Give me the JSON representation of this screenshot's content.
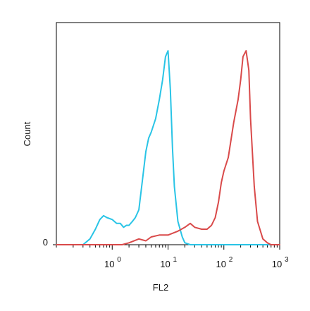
{
  "chart_data": {
    "type": "line",
    "xlabel": "FL2",
    "ylabel": "Count",
    "x_scale": "log",
    "xlim": [
      0.1,
      1000
    ],
    "ylim": [
      0,
      1
    ],
    "x_ticks": [
      {
        "value": 1,
        "base": "10",
        "exp": "0"
      },
      {
        "value": 10,
        "base": "10",
        "exp": "1"
      },
      {
        "value": 100,
        "base": "10",
        "exp": "2"
      },
      {
        "value": 1000,
        "base": "10",
        "exp": "3"
      }
    ],
    "y_ticks": [
      {
        "value": 0,
        "label": "0"
      }
    ],
    "grid": false,
    "series": [
      {
        "color": "#29c4e6",
        "x": [
          0.1,
          0.3,
          0.4,
          0.5,
          0.6,
          0.7,
          0.8,
          1.0,
          1.2,
          1.4,
          1.6,
          1.8,
          2.0,
          2.3,
          2.6,
          3.0,
          3.5,
          4.0,
          4.5,
          5.0,
          6.0,
          7.0,
          8.0,
          9.0,
          10.0,
          11.0,
          12.0,
          13.0,
          15.0,
          18.0,
          20.0,
          25.0,
          30.0,
          40.0,
          1000.0
        ],
        "y": [
          0.0,
          0.0,
          0.03,
          0.08,
          0.13,
          0.15,
          0.14,
          0.13,
          0.11,
          0.11,
          0.09,
          0.1,
          0.1,
          0.12,
          0.14,
          0.18,
          0.34,
          0.48,
          0.55,
          0.58,
          0.65,
          0.75,
          0.85,
          0.97,
          1.0,
          0.8,
          0.5,
          0.3,
          0.12,
          0.04,
          0.01,
          0.0,
          0.0,
          0.0,
          0.0
        ]
      },
      {
        "color": "#d94a4a",
        "x": [
          0.1,
          1.5,
          2.0,
          3.0,
          4.0,
          5.0,
          7.0,
          10.0,
          15.0,
          20.0,
          25.0,
          30.0,
          40.0,
          50.0,
          60.0,
          70.0,
          80.0,
          90.0,
          100.0,
          120.0,
          150.0,
          180.0,
          200.0,
          220.0,
          250.0,
          280.0,
          300.0,
          350.0,
          400.0,
          500.0,
          600.0,
          700.0,
          1000.0
        ],
        "y": [
          0.0,
          0.0,
          0.01,
          0.03,
          0.02,
          0.04,
          0.05,
          0.05,
          0.07,
          0.09,
          0.11,
          0.09,
          0.08,
          0.08,
          0.1,
          0.14,
          0.22,
          0.32,
          0.38,
          0.45,
          0.63,
          0.75,
          0.85,
          0.97,
          1.0,
          0.9,
          0.65,
          0.3,
          0.12,
          0.03,
          0.01,
          0.0,
          0.0
        ]
      }
    ]
  }
}
